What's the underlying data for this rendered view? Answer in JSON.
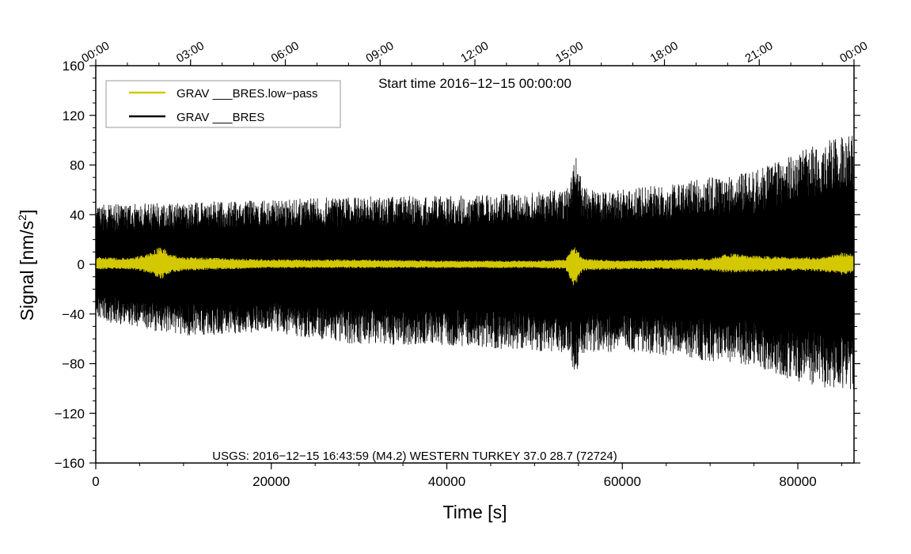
{
  "chart_data": {
    "type": "line",
    "title": "Start time 2016−12−15 00:00:00",
    "xlabel": "Time [s]",
    "ylabel_main": "Signal [nm/s",
    "ylabel_sup": "2",
    "ylabel_tail": "]",
    "xlim": [
      0,
      86400
    ],
    "ylim": [
      -160,
      160
    ],
    "x_ticks": [
      0,
      20000,
      40000,
      60000,
      80000
    ],
    "x_tick_labels": [
      "0",
      "20000",
      "40000",
      "60000",
      "80000"
    ],
    "y_ticks": [
      -160,
      -120,
      -80,
      -40,
      0,
      40,
      80,
      120,
      160
    ],
    "y_tick_labels": [
      "−160",
      "−120",
      "−80",
      "−40",
      "0",
      "40",
      "80",
      "120",
      "160"
    ],
    "top_axis_ticks": [
      0,
      10800,
      21600,
      32400,
      43200,
      54000,
      64800,
      75600,
      86400
    ],
    "top_axis_labels": [
      "00:00",
      "03:00",
      "06:00",
      "09:00",
      "12:00",
      "15:00",
      "18:00",
      "21:00",
      "00:00"
    ],
    "legend_position": "top-left",
    "annotation": "USGS: 2016−12−15 16:43:59 (M4.2) WESTERN TURKEY 37.0 28.7 (72724)",
    "series": [
      {
        "name": "GRAV ___BRES.low−pass",
        "color": "#d4c800",
        "envelope": {
          "x": [
            0,
            4000,
            6000,
            7500,
            8500,
            10000,
            20000,
            30000,
            40000,
            50000,
            53500,
            54500,
            55500,
            60000,
            65000,
            70000,
            72000,
            75000,
            80000,
            83000,
            85000,
            86400
          ],
          "high": [
            6,
            5,
            9,
            15,
            8,
            6,
            4,
            4,
            3,
            3,
            4,
            16,
            5,
            3,
            4,
            5,
            9,
            7,
            6,
            6,
            10,
            8
          ],
          "low": [
            -4,
            -4,
            -7,
            -12,
            -7,
            -5,
            -3,
            -3,
            -3,
            -3,
            -4,
            -19,
            -5,
            -4,
            -4,
            -5,
            -7,
            -6,
            -5,
            -6,
            -9,
            -7
          ]
        }
      },
      {
        "name": "GRAV ___BRES",
        "color": "#000000",
        "envelope": {
          "x": [
            0,
            10000,
            20000,
            30000,
            40000,
            50000,
            54000,
            54600,
            55500,
            60000,
            70000,
            75000,
            80000,
            83000,
            86400
          ],
          "high": [
            48,
            50,
            52,
            55,
            55,
            58,
            62,
            93,
            62,
            60,
            70,
            75,
            90,
            100,
            105
          ],
          "low": [
            -45,
            -58,
            -55,
            -65,
            -65,
            -70,
            -72,
            -92,
            -72,
            -70,
            -78,
            -82,
            -95,
            -100,
            -105
          ],
          "typical": 40
        }
      }
    ]
  }
}
